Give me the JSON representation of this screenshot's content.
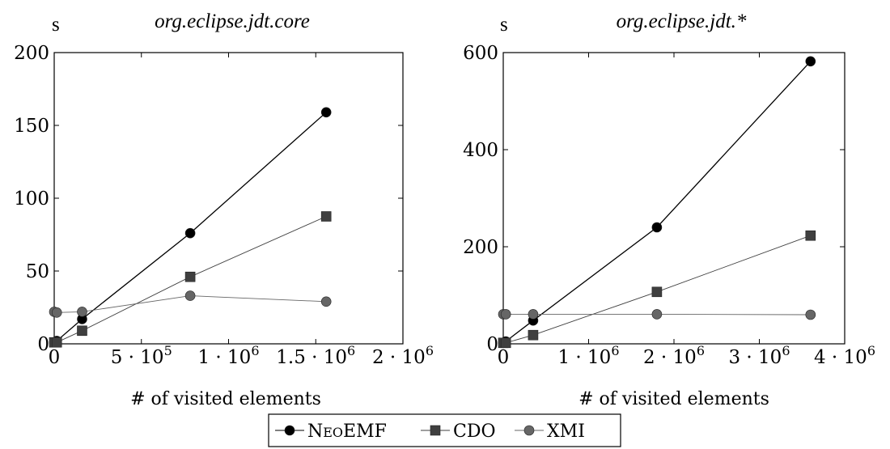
{
  "chart_data": [
    {
      "type": "line",
      "title": "org.eclipse.jdt.core",
      "ylabel": "s",
      "xlabel": "# of visited elements",
      "xlim": [
        0,
        2000000
      ],
      "ylim": [
        0,
        200
      ],
      "grid": false,
      "x_ticks": [
        {
          "value": 0,
          "label": "0"
        },
        {
          "value": 500000,
          "mantissa": "5 · 10",
          "exp": "5"
        },
        {
          "value": 1000000,
          "mantissa": "1 · 10",
          "exp": "6"
        },
        {
          "value": 1500000,
          "mantissa": "1.5 · 10",
          "exp": "6"
        },
        {
          "value": 2000000,
          "mantissa": "2 · 10",
          "exp": "6"
        }
      ],
      "y_ticks": [
        {
          "value": 0,
          "label": "0"
        },
        {
          "value": 50,
          "label": "50"
        },
        {
          "value": 100,
          "label": "100"
        },
        {
          "value": 150,
          "label": "150"
        },
        {
          "value": 200,
          "label": "200"
        }
      ],
      "series": [
        {
          "name": "NeoEMF",
          "marker": "circle",
          "color": "#000000",
          "points": [
            [
              0,
              1
            ],
            [
              15000,
              2
            ],
            [
              160000,
              17
            ],
            [
              780000,
              76
            ],
            [
              1560000,
              159
            ]
          ]
        },
        {
          "name": "CDO",
          "marker": "square",
          "color": "#3f3f3f",
          "points": [
            [
              0,
              1
            ],
            [
              15000,
              1
            ],
            [
              160000,
              9
            ],
            [
              780000,
              46
            ],
            [
              1560000,
              87.5
            ]
          ]
        },
        {
          "name": "XMI",
          "marker": "circle",
          "color": "#666666",
          "points": [
            [
              0,
              22
            ],
            [
              15000,
              21.5
            ],
            [
              160000,
              22
            ],
            [
              780000,
              33
            ],
            [
              1560000,
              29
            ]
          ]
        }
      ]
    },
    {
      "type": "line",
      "title": "org.eclipse.jdt.*",
      "ylabel": "s",
      "xlabel": "# of visited elements",
      "xlim": [
        0,
        4000000
      ],
      "ylim": [
        0,
        600
      ],
      "grid": false,
      "x_ticks": [
        {
          "value": 0,
          "label": "0"
        },
        {
          "value": 1000000,
          "mantissa": "1 · 10",
          "exp": "6"
        },
        {
          "value": 2000000,
          "mantissa": "2 · 10",
          "exp": "6"
        },
        {
          "value": 3000000,
          "mantissa": "3 · 10",
          "exp": "6"
        },
        {
          "value": 4000000,
          "mantissa": "4 · 10",
          "exp": "6"
        }
      ],
      "y_ticks": [
        {
          "value": 0,
          "label": "0"
        },
        {
          "value": 200,
          "label": "200"
        },
        {
          "value": 400,
          "label": "400"
        },
        {
          "value": 600,
          "label": "600"
        }
      ],
      "series": [
        {
          "name": "NeoEMF",
          "marker": "circle",
          "color": "#000000",
          "points": [
            [
              0,
              2
            ],
            [
              30000,
              5
            ],
            [
              350000,
              48
            ],
            [
              1800000,
              240
            ],
            [
              3600000,
              582
            ]
          ]
        },
        {
          "name": "CDO",
          "marker": "square",
          "color": "#3f3f3f",
          "points": [
            [
              0,
              2
            ],
            [
              30000,
              2
            ],
            [
              350000,
              18
            ],
            [
              1800000,
              107
            ],
            [
              3600000,
              223
            ]
          ]
        },
        {
          "name": "XMI",
          "marker": "circle",
          "color": "#666666",
          "points": [
            [
              0,
              61
            ],
            [
              30000,
              61
            ],
            [
              350000,
              61
            ],
            [
              1800000,
              61
            ],
            [
              3600000,
              60
            ]
          ]
        }
      ]
    }
  ],
  "legend": {
    "placement": "bottom-center",
    "entries": [
      {
        "first": "N",
        "rest": "EO",
        "tail": "EMF",
        "marker": "circle",
        "color": "#000000"
      },
      {
        "label": "CDO",
        "marker": "square",
        "color": "#3f3f3f"
      },
      {
        "label": "XMI",
        "marker": "circle",
        "color": "#666666"
      }
    ]
  }
}
